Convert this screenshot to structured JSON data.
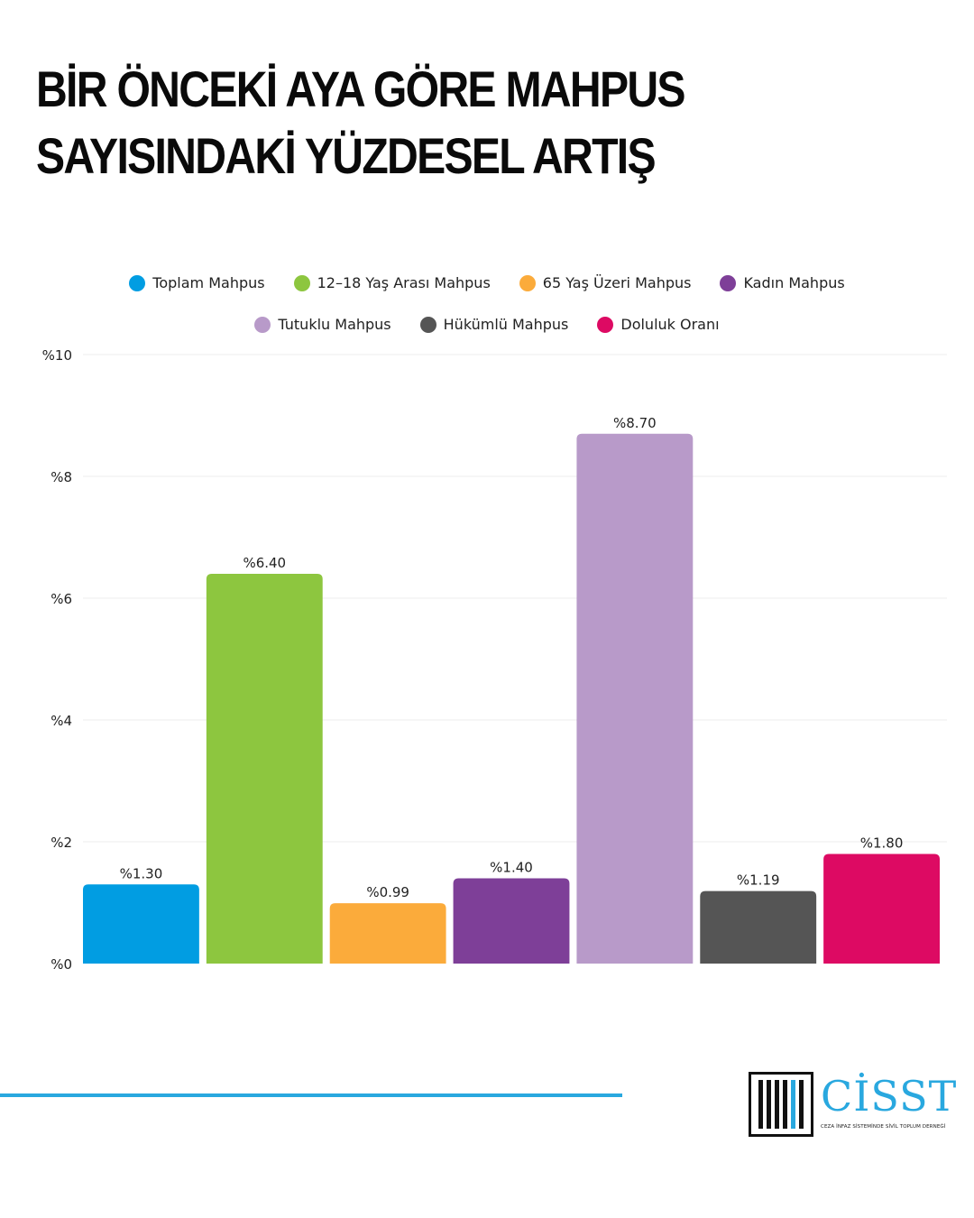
{
  "title": {
    "line1": "BİR ÖNCEKİ AYA GÖRE MAHPUS",
    "line2": "SAYISINDAKİ YÜZDESEL ARTIŞ"
  },
  "chart_data": {
    "type": "bar",
    "title": "BİR ÖNCEKİ AYA GÖRE MAHPUS SAYISINDAKİ YÜZDESEL ARTIŞ",
    "xlabel": "",
    "ylabel": "",
    "ylim": [
      0,
      10
    ],
    "yticks": [
      0,
      2,
      4,
      6,
      8,
      10
    ],
    "ytick_labels": [
      "%0",
      "%2",
      "%4",
      "%6",
      "%8",
      "%10"
    ],
    "grid": true,
    "legend_position": "top-center",
    "categories": [
      "Toplam Mahpus",
      "12-18 Yaş Arası Mahpus",
      "65 Yaş Üzeri Mahpus",
      "Kadın Mahpus",
      "Tutuklu Mahpus",
      "Hükümlü Mahpus",
      "Doluluk Oranı"
    ],
    "values": [
      1.3,
      6.4,
      0.99,
      1.4,
      8.7,
      1.19,
      1.8
    ],
    "data_labels": [
      "%1.30",
      "%6.40",
      "%0.99",
      "%1.40",
      "%8.70",
      "%1.19",
      "%1.80"
    ],
    "colors": [
      "#019de2",
      "#8dc63f",
      "#fbab3b",
      "#7e3f98",
      "#b89ac9",
      "#555555",
      "#dd0a63"
    ]
  },
  "legend": {
    "row1": [
      {
        "label": "Toplam Mahpus",
        "color": "#019de2"
      },
      {
        "label": "12–18 Yaş Arası Mahpus",
        "color": "#8dc63f"
      },
      {
        "label": "65 Yaş Üzeri Mahpus",
        "color": "#fbab3b"
      },
      {
        "label": "Kadın Mahpus",
        "color": "#7e3f98"
      }
    ],
    "row2": [
      {
        "label": "Tutuklu Mahpus",
        "color": "#b89ac9"
      },
      {
        "label": "Hükümlü Mahpus",
        "color": "#555555"
      },
      {
        "label": "Doluluk Oranı",
        "color": "#dd0a63"
      }
    ]
  },
  "logo": {
    "name": "CİSST",
    "subtitle": "CEZA İNFAZ SİSTEMİNDE SİVİL TOPLUM DERNEĞİ",
    "accent_color": "#29a8df"
  }
}
